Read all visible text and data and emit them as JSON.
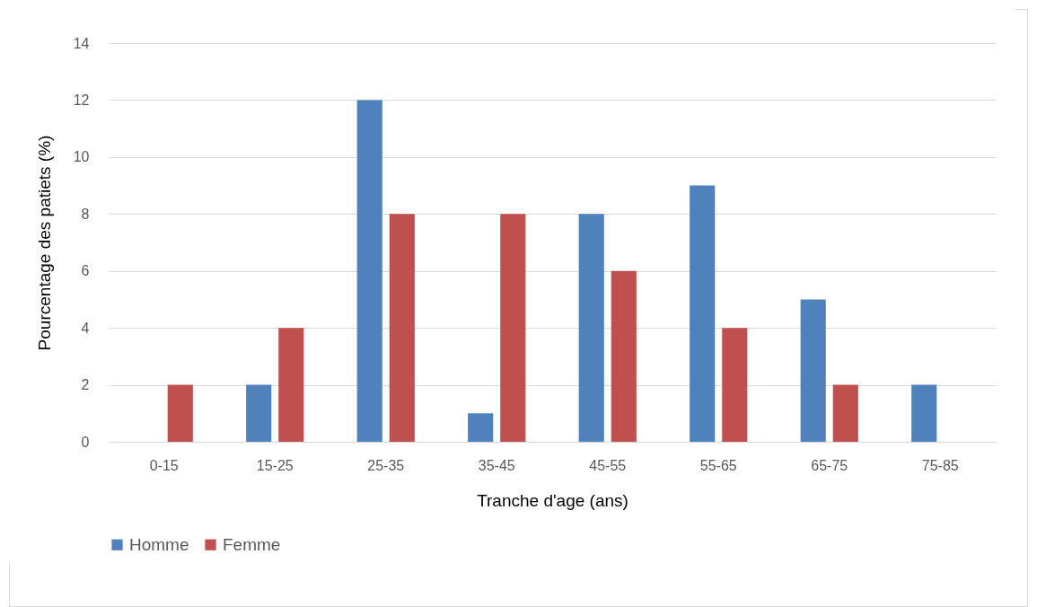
{
  "chart_data": {
    "type": "bar",
    "xlabel": "Tranche d'age (ans)",
    "ylabel": "Pourcentage des patiets (%)",
    "categories": [
      "0-15",
      "15-25",
      "25-35",
      "35-45",
      "45-55",
      "55-65",
      "65-75",
      "75-85"
    ],
    "series": [
      {
        "name": "Homme",
        "color": "#4f81bd",
        "values": [
          0,
          2,
          12,
          1,
          8,
          9,
          5,
          2
        ]
      },
      {
        "name": "Femme",
        "color": "#c0504d",
        "values": [
          2,
          4,
          8,
          8,
          6,
          4,
          2,
          0
        ]
      }
    ],
    "ylim": [
      0,
      14
    ],
    "yticks": [
      0,
      2,
      4,
      6,
      8,
      10,
      12,
      14
    ],
    "grid": "y",
    "legend": "bottom"
  }
}
